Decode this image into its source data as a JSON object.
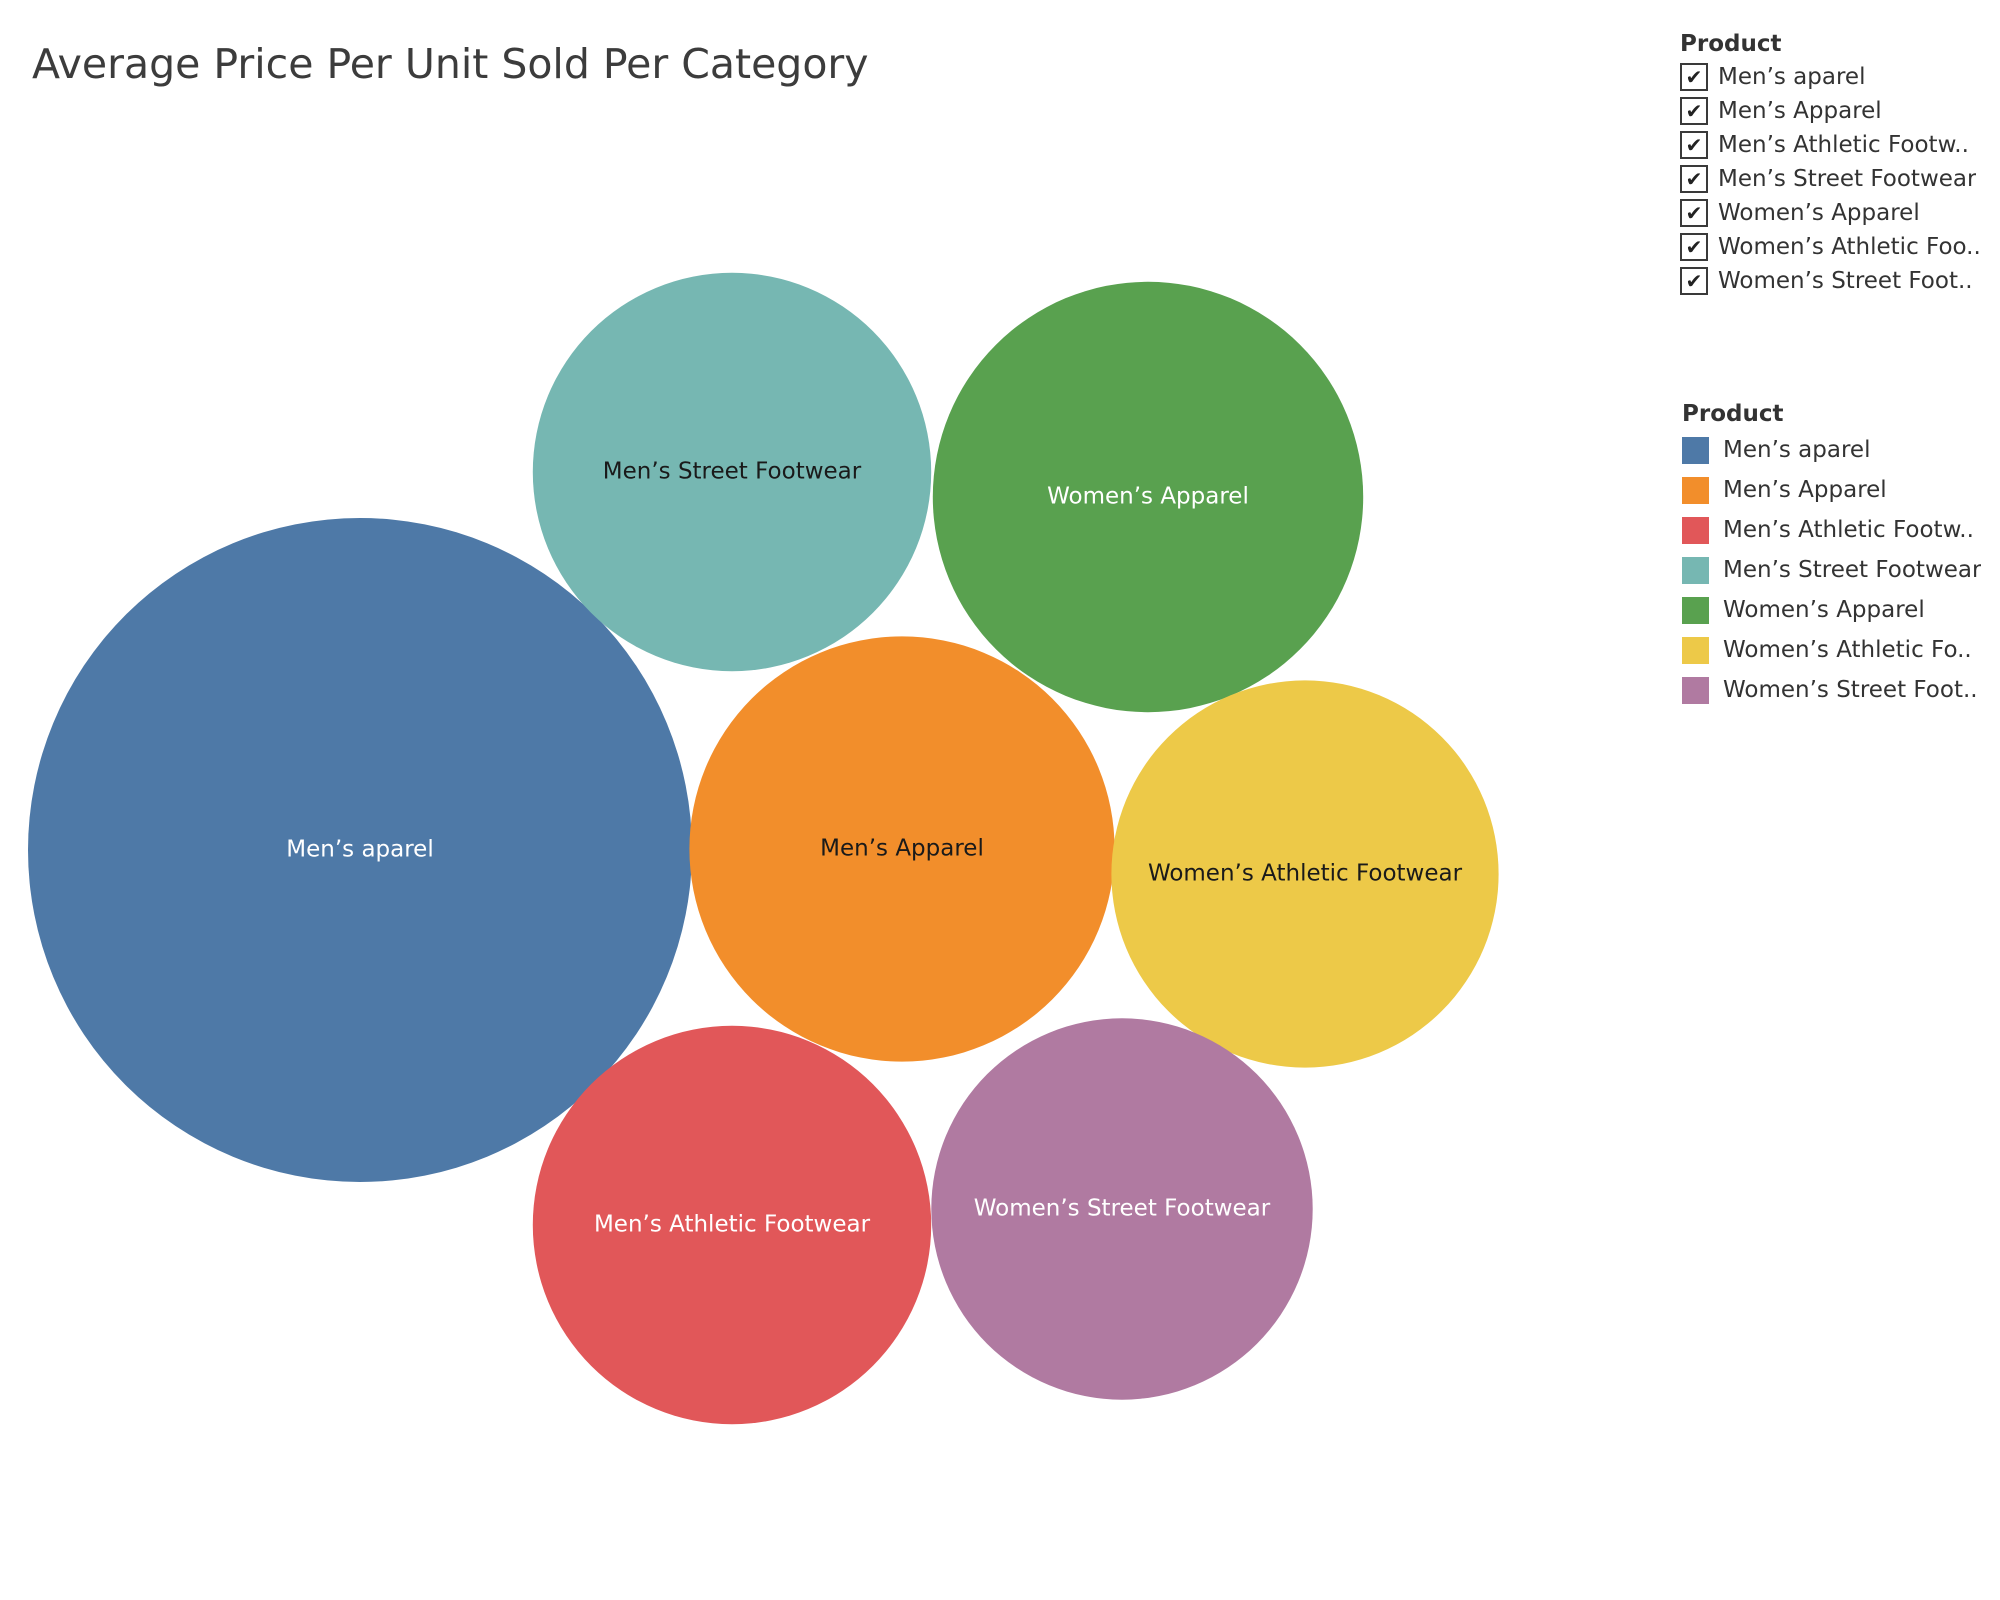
{
  "chart_data": {
    "type": "packed-bubble",
    "title": "Average Price Per Unit Sold Per Category",
    "size_measure": "Average price per unit",
    "bubbles": [
      {
        "name": "Men’s aparel",
        "label": "Men’s aparel",
        "relative_size": 1.0,
        "color": "#4e79a7",
        "label_color": "#ffffff"
      },
      {
        "name": "Men’s Apparel",
        "label": "Men’s Apparel",
        "relative_size": 0.41,
        "color": "#f28e2b",
        "label_color": "#1a1a1a"
      },
      {
        "name": "Men’s Athletic Footwear",
        "label": "Men’s Athletic Footwear",
        "relative_size": 0.36,
        "color": "#e15759",
        "label_color": "#ffffff"
      },
      {
        "name": "Men’s Street Footwear",
        "label": "Men’s Street Footwear",
        "relative_size": 0.36,
        "color": "#76b7b2",
        "label_color": "#1a1a1a"
      },
      {
        "name": "Women’s Apparel",
        "label": "Women’s Apparel",
        "relative_size": 0.42,
        "color": "#59a14f",
        "label_color": "#ffffff"
      },
      {
        "name": "Women’s Athletic Footwear",
        "label": "Women’s Athletic Footwear",
        "relative_size": 0.34,
        "color": "#edc948",
        "label_color": "#1a1a1a"
      },
      {
        "name": "Women’s Street Footwear",
        "label": "Women’s Street Footwear",
        "relative_size": 0.33,
        "color": "#b07aa1",
        "label_color": "#ffffff"
      }
    ]
  },
  "filter": {
    "title": "Product",
    "check_glyph": "✔",
    "items": [
      {
        "label": "Men’s aparel",
        "checked": true
      },
      {
        "label": "Men’s Apparel",
        "checked": true
      },
      {
        "label": "Men’s Athletic Footw..",
        "checked": true
      },
      {
        "label": "Men’s Street Footwear",
        "checked": true
      },
      {
        "label": "Women’s Apparel",
        "checked": true
      },
      {
        "label": "Women’s Athletic Foo..",
        "checked": true
      },
      {
        "label": "Women’s Street Foot..",
        "checked": true
      }
    ]
  },
  "legend": {
    "title": "Product",
    "items": [
      {
        "label": "Men’s aparel",
        "color": "#4e79a7"
      },
      {
        "label": "Men’s Apparel",
        "color": "#f28e2b"
      },
      {
        "label": "Men’s Athletic Footw..",
        "color": "#e15759"
      },
      {
        "label": "Men’s Street Footwear",
        "color": "#76b7b2"
      },
      {
        "label": "Women’s Apparel",
        "color": "#59a14f"
      },
      {
        "label": "Women’s Athletic Fo..",
        "color": "#edc948"
      },
      {
        "label": "Women’s Street Foot..",
        "color": "#b07aa1"
      }
    ]
  }
}
